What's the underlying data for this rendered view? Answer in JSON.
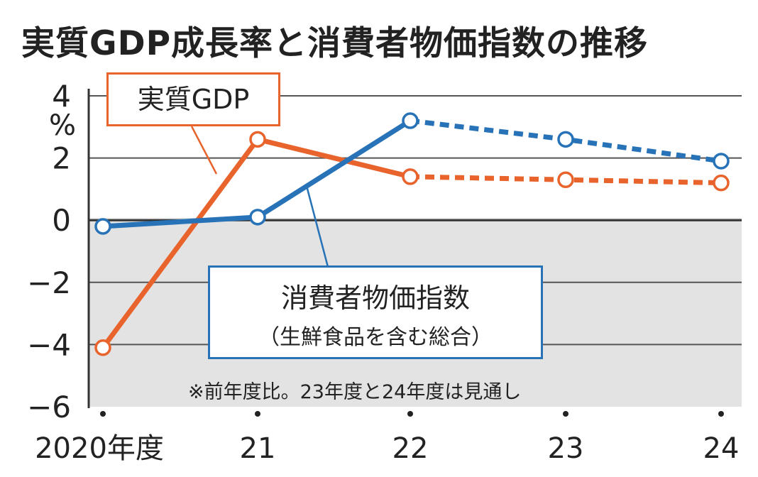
{
  "title": "実質GDP成長率と消費者物価指数の推移",
  "y_unit": "%",
  "note": "※前年度比。23年度と24年度は見通し",
  "labels": {
    "gdp": "実質GDP",
    "cpi_main": "消費者物価指数",
    "cpi_sub": "（生鮮食品を含む総合）"
  },
  "colors": {
    "gdp": "#e8642c",
    "cpi": "#2873b8",
    "negative_region": "#e3e3e3",
    "gridline": "#333333"
  },
  "chart_data": {
    "type": "line",
    "title": "実質GDP成長率と消費者物価指数の推移",
    "categories": [
      "2020年度",
      "21",
      "22",
      "23",
      "24"
    ],
    "ylim": [
      -6,
      4
    ],
    "yticks": [
      "4",
      "2",
      "0",
      "−2",
      "−4",
      "−6"
    ],
    "ytick_values": [
      4,
      2,
      0,
      -2,
      -4,
      -6
    ],
    "grid": true,
    "series": [
      {
        "name": "実質GDP",
        "values": [
          -4.1,
          2.6,
          1.4,
          1.3,
          1.2
        ],
        "color": "#e8642c",
        "forecast_from_index": 2
      },
      {
        "name": "消費者物価指数",
        "values": [
          -0.2,
          0.1,
          3.2,
          2.6,
          1.9
        ],
        "color": "#2873b8",
        "forecast_from_index": 2
      }
    ],
    "annotation": "※前年度比。23年度と24年度は見通し"
  }
}
